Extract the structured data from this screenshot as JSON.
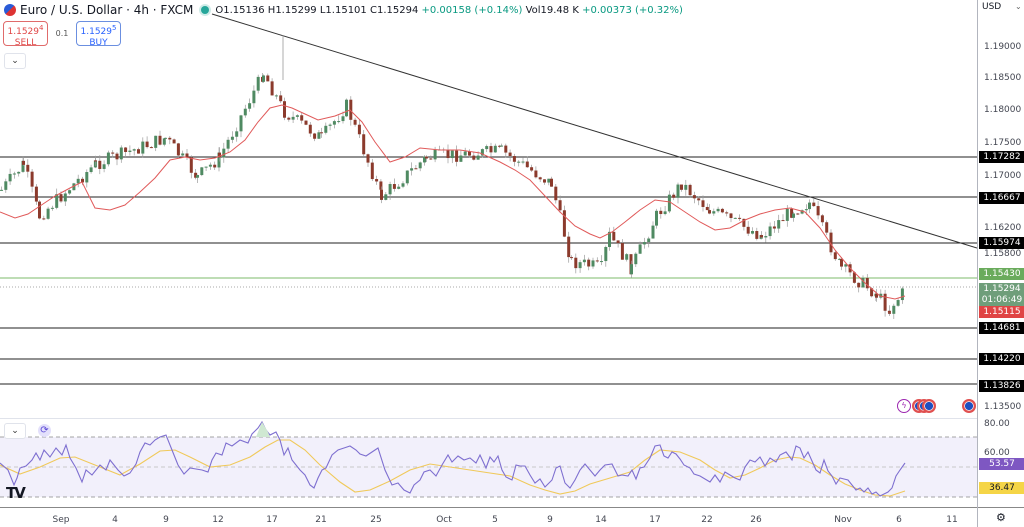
{
  "header": {
    "title": "Euro / U.S. Dollar · 4h · FXCM",
    "symbol_icon": "eurusd-flag-icon",
    "open": "O1.15136",
    "high": "H1.15299",
    "low": "L1.15101",
    "close": "C1.15294",
    "change": "+0.00158 (+0.14%)",
    "volume": "Vol19.48 K",
    "vol_change": "+0.00373 (+0.32%)"
  },
  "trade": {
    "sell_price": "1.1529",
    "sell_sup": "4",
    "sell_label": "SELL",
    "spread": "0.1",
    "buy_price": "1.1529",
    "buy_sup": "5",
    "buy_label": "BUY"
  },
  "axis": {
    "currency": "USD",
    "price_ticks": [
      "1.19000",
      "1.18500",
      "1.18000",
      "1.17500",
      "1.17000",
      "1.16200",
      "1.15800",
      "1.13500"
    ],
    "rsi_ticks": [
      "80.00",
      "60.00"
    ],
    "x_ticks": [
      "Sep",
      "4",
      "9",
      "12",
      "17",
      "21",
      "25",
      "Oct",
      "5",
      "9",
      "14",
      "17",
      "22",
      "26",
      "Nov",
      "6",
      "11"
    ]
  },
  "price_labels": {
    "h1": "1.17282",
    "h2": "1.16667",
    "h3": "1.15974",
    "green": "1.15430",
    "current": "1.15294",
    "countdown": "01:06:49",
    "red": "1.15115",
    "h4": "1.14681",
    "h5": "1.14220",
    "h6": "1.13826"
  },
  "rsi_labels": {
    "rsi": "53.57",
    "ma": "36.47"
  },
  "colors": {
    "up": "#4f8a62",
    "down": "#8b3a2c",
    "ma": "#e05a5a",
    "rsi": "#7e6fd0",
    "rsi_ma": "#f0c95a",
    "green_line": "#7dbb6b",
    "red_label": "#e04444"
  },
  "chart_data": [
    {
      "type": "candlestick",
      "title": "Euro / U.S. Dollar · 4h · FXCM",
      "xlabel": "",
      "ylabel": "USD",
      "ylim": [
        1.132,
        1.194
      ],
      "x_ticks": [
        "Sep",
        "4",
        "9",
        "12",
        "17",
        "21",
        "25",
        "Oct",
        "5",
        "9",
        "14",
        "17",
        "22",
        "26",
        "Nov",
        "6",
        "11"
      ],
      "last": {
        "open": 1.15136,
        "high": 1.15299,
        "low": 1.15101,
        "close": 1.15294
      },
      "horizontal_levels": [
        1.17282,
        1.16667,
        1.15974,
        1.1543,
        1.14681,
        1.1422,
        1.13826
      ],
      "trendline": {
        "from": {
          "x": "Sep 17",
          "y": 1.192
        },
        "to": {
          "x": "Nov 8",
          "y": 1.159
        }
      },
      "close_path_approx": [
        {
          "x": "Aug 29",
          "y": 1.168
        },
        {
          "x": "Sep 1",
          "y": 1.172
        },
        {
          "x": "Sep 2",
          "y": 1.164
        },
        {
          "x": "Sep 5",
          "y": 1.172
        },
        {
          "x": "Sep 9",
          "y": 1.176
        },
        {
          "x": "Sep 10",
          "y": 1.17
        },
        {
          "x": "Sep 12",
          "y": 1.173
        },
        {
          "x": "Sep 16",
          "y": 1.186
        },
        {
          "x": "Sep 17",
          "y": 1.18
        },
        {
          "x": "Sep 20",
          "y": 1.176
        },
        {
          "x": "Sep 23",
          "y": 1.181
        },
        {
          "x": "Sep 25",
          "y": 1.167
        },
        {
          "x": "Sep 29",
          "y": 1.173
        },
        {
          "x": "Oct 1",
          "y": 1.174
        },
        {
          "x": "Oct 6",
          "y": 1.169
        },
        {
          "x": "Oct 9",
          "y": 1.157
        },
        {
          "x": "Oct 10",
          "y": 1.156
        },
        {
          "x": "Oct 13",
          "y": 1.161
        },
        {
          "x": "Oct 14",
          "y": 1.156
        },
        {
          "x": "Oct 15",
          "y": 1.164
        },
        {
          "x": "Oct 17",
          "y": 1.169
        },
        {
          "x": "Oct 20",
          "y": 1.165
        },
        {
          "x": "Oct 22",
          "y": 1.161
        },
        {
          "x": "Oct 27",
          "y": 1.165
        },
        {
          "x": "Oct 28",
          "y": 1.166
        },
        {
          "x": "Oct 30",
          "y": 1.156
        },
        {
          "x": "Nov 3",
          "y": 1.152
        },
        {
          "x": "Nov 5",
          "y": 1.1495
        },
        {
          "x": "Nov 6",
          "y": 1.1529
        }
      ],
      "ma_line": "red moving average (~20)"
    },
    {
      "type": "line",
      "title": "RSI",
      "ylim": [
        20,
        90
      ],
      "bands": [
        70,
        50,
        30
      ],
      "series": [
        {
          "name": "RSI",
          "last": 53.57
        },
        {
          "name": "RSI MA",
          "last": 36.47
        }
      ]
    }
  ]
}
